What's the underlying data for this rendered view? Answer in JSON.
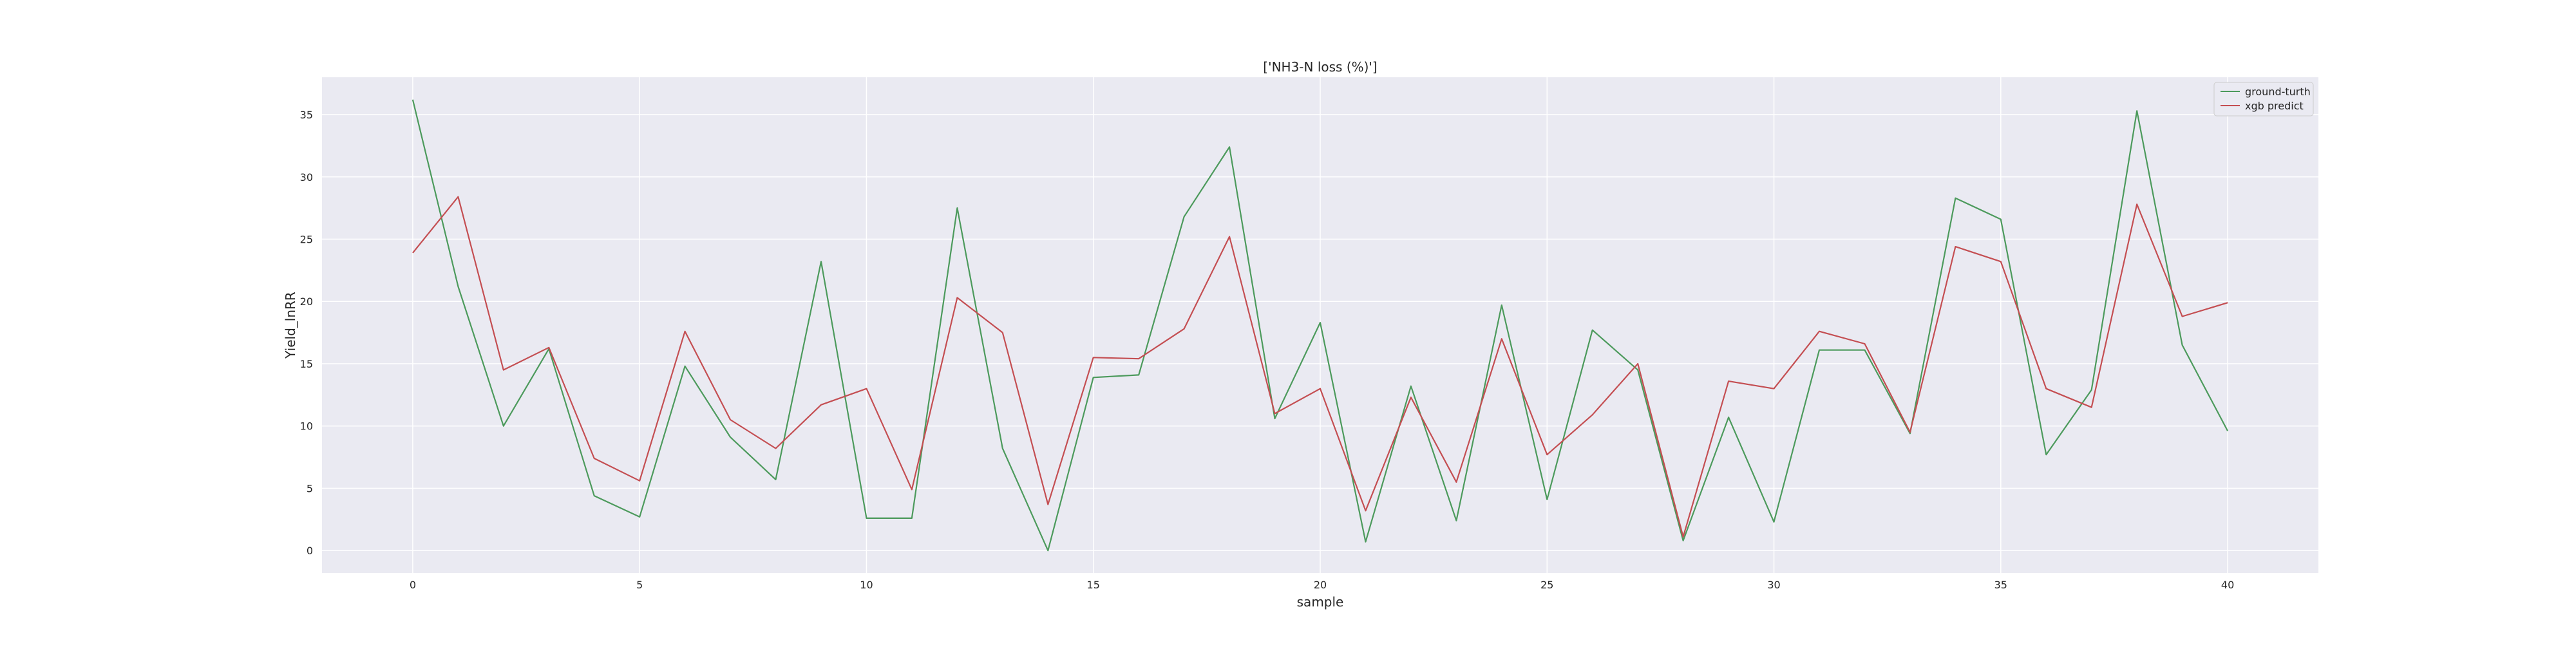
{
  "chart_data": {
    "type": "line",
    "title": "['NH3-N loss (%)']",
    "xlabel": "sample",
    "ylabel": "Yield_lnRR",
    "xlim": [
      -2,
      42
    ],
    "ylim": [
      -1.8,
      38.0
    ],
    "xticks": [
      0,
      5,
      10,
      15,
      20,
      25,
      30,
      35,
      40
    ],
    "yticks": [
      0,
      5,
      10,
      15,
      20,
      25,
      30,
      35
    ],
    "grid": true,
    "legend": "top-right",
    "x": [
      0,
      1,
      2,
      3,
      4,
      5,
      6,
      7,
      8,
      9,
      10,
      11,
      12,
      13,
      14,
      15,
      16,
      17,
      18,
      19,
      20,
      21,
      22,
      23,
      24,
      25,
      26,
      27,
      28,
      29,
      30,
      31,
      32,
      33,
      34,
      35,
      36,
      37,
      38,
      39,
      40
    ],
    "series": [
      {
        "name": "ground-turth",
        "color": "#4c9a5c",
        "values": [
          36.2,
          21.2,
          10.0,
          16.2,
          4.4,
          2.7,
          14.8,
          9.1,
          5.7,
          23.2,
          2.6,
          2.6,
          27.5,
          8.2,
          0.0,
          13.9,
          14.1,
          26.8,
          32.4,
          10.6,
          18.3,
          0.7,
          13.2,
          2.4,
          19.7,
          4.1,
          17.7,
          14.5,
          0.8,
          10.7,
          2.3,
          16.1,
          16.1,
          9.4,
          28.3,
          26.6,
          7.7,
          12.9,
          35.3,
          16.5,
          9.6
        ]
      },
      {
        "name": "xgb predict",
        "color": "#c44e52",
        "values": [
          23.9,
          28.4,
          14.5,
          16.3,
          7.4,
          5.6,
          17.6,
          10.5,
          8.2,
          11.7,
          13.0,
          4.9,
          20.3,
          17.5,
          3.7,
          15.5,
          15.4,
          17.8,
          25.2,
          11.0,
          13.0,
          3.2,
          12.3,
          5.5,
          17.0,
          7.7,
          10.9,
          15.0,
          1.1,
          13.6,
          13.0,
          17.6,
          16.6,
          9.5,
          24.4,
          23.2,
          13.0,
          11.5,
          27.8,
          18.8,
          19.9
        ]
      }
    ]
  }
}
